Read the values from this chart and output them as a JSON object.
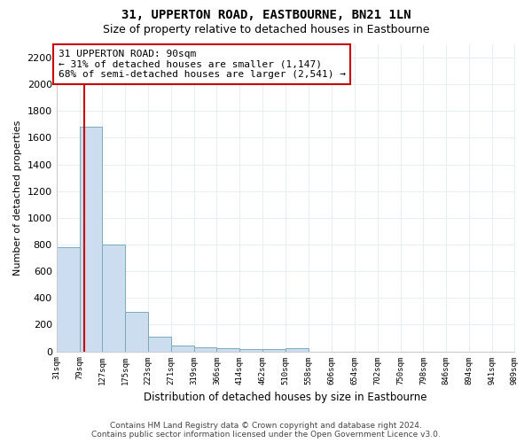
{
  "title": "31, UPPERTON ROAD, EASTBOURNE, BN21 1LN",
  "subtitle": "Size of property relative to detached houses in Eastbourne",
  "xlabel": "Distribution of detached houses by size in Eastbourne",
  "ylabel": "Number of detached properties",
  "bin_edges": [
    31,
    79,
    127,
    175,
    223,
    271,
    319,
    366,
    414,
    462,
    510,
    558,
    606,
    654,
    702,
    750,
    798,
    846,
    894,
    941,
    989
  ],
  "bar_heights": [
    780,
    1680,
    800,
    295,
    110,
    42,
    30,
    25,
    20,
    15,
    25,
    0,
    0,
    0,
    0,
    0,
    0,
    0,
    0,
    0
  ],
  "bar_color": "#ccddef",
  "bar_edge_color": "#7aaabb",
  "property_size": 90,
  "property_label": "31 UPPERTON ROAD: 90sqm",
  "annotation_line1": "← 31% of detached houses are smaller (1,147)",
  "annotation_line2": "68% of semi-detached houses are larger (2,541) →",
  "annotation_box_color": "#ffffff",
  "annotation_box_edge": "#cc0000",
  "vline_color": "#cc0000",
  "ylim": [
    0,
    2300
  ],
  "yticks": [
    0,
    200,
    400,
    600,
    800,
    1000,
    1200,
    1400,
    1600,
    1800,
    2000,
    2200
  ],
  "background_color": "#ffffff",
  "plot_bg_color": "#ffffff",
  "grid_color": "#e8eef4",
  "footer_line1": "Contains HM Land Registry data © Crown copyright and database right 2024.",
  "footer_line2": "Contains public sector information licensed under the Open Government Licence v3.0."
}
